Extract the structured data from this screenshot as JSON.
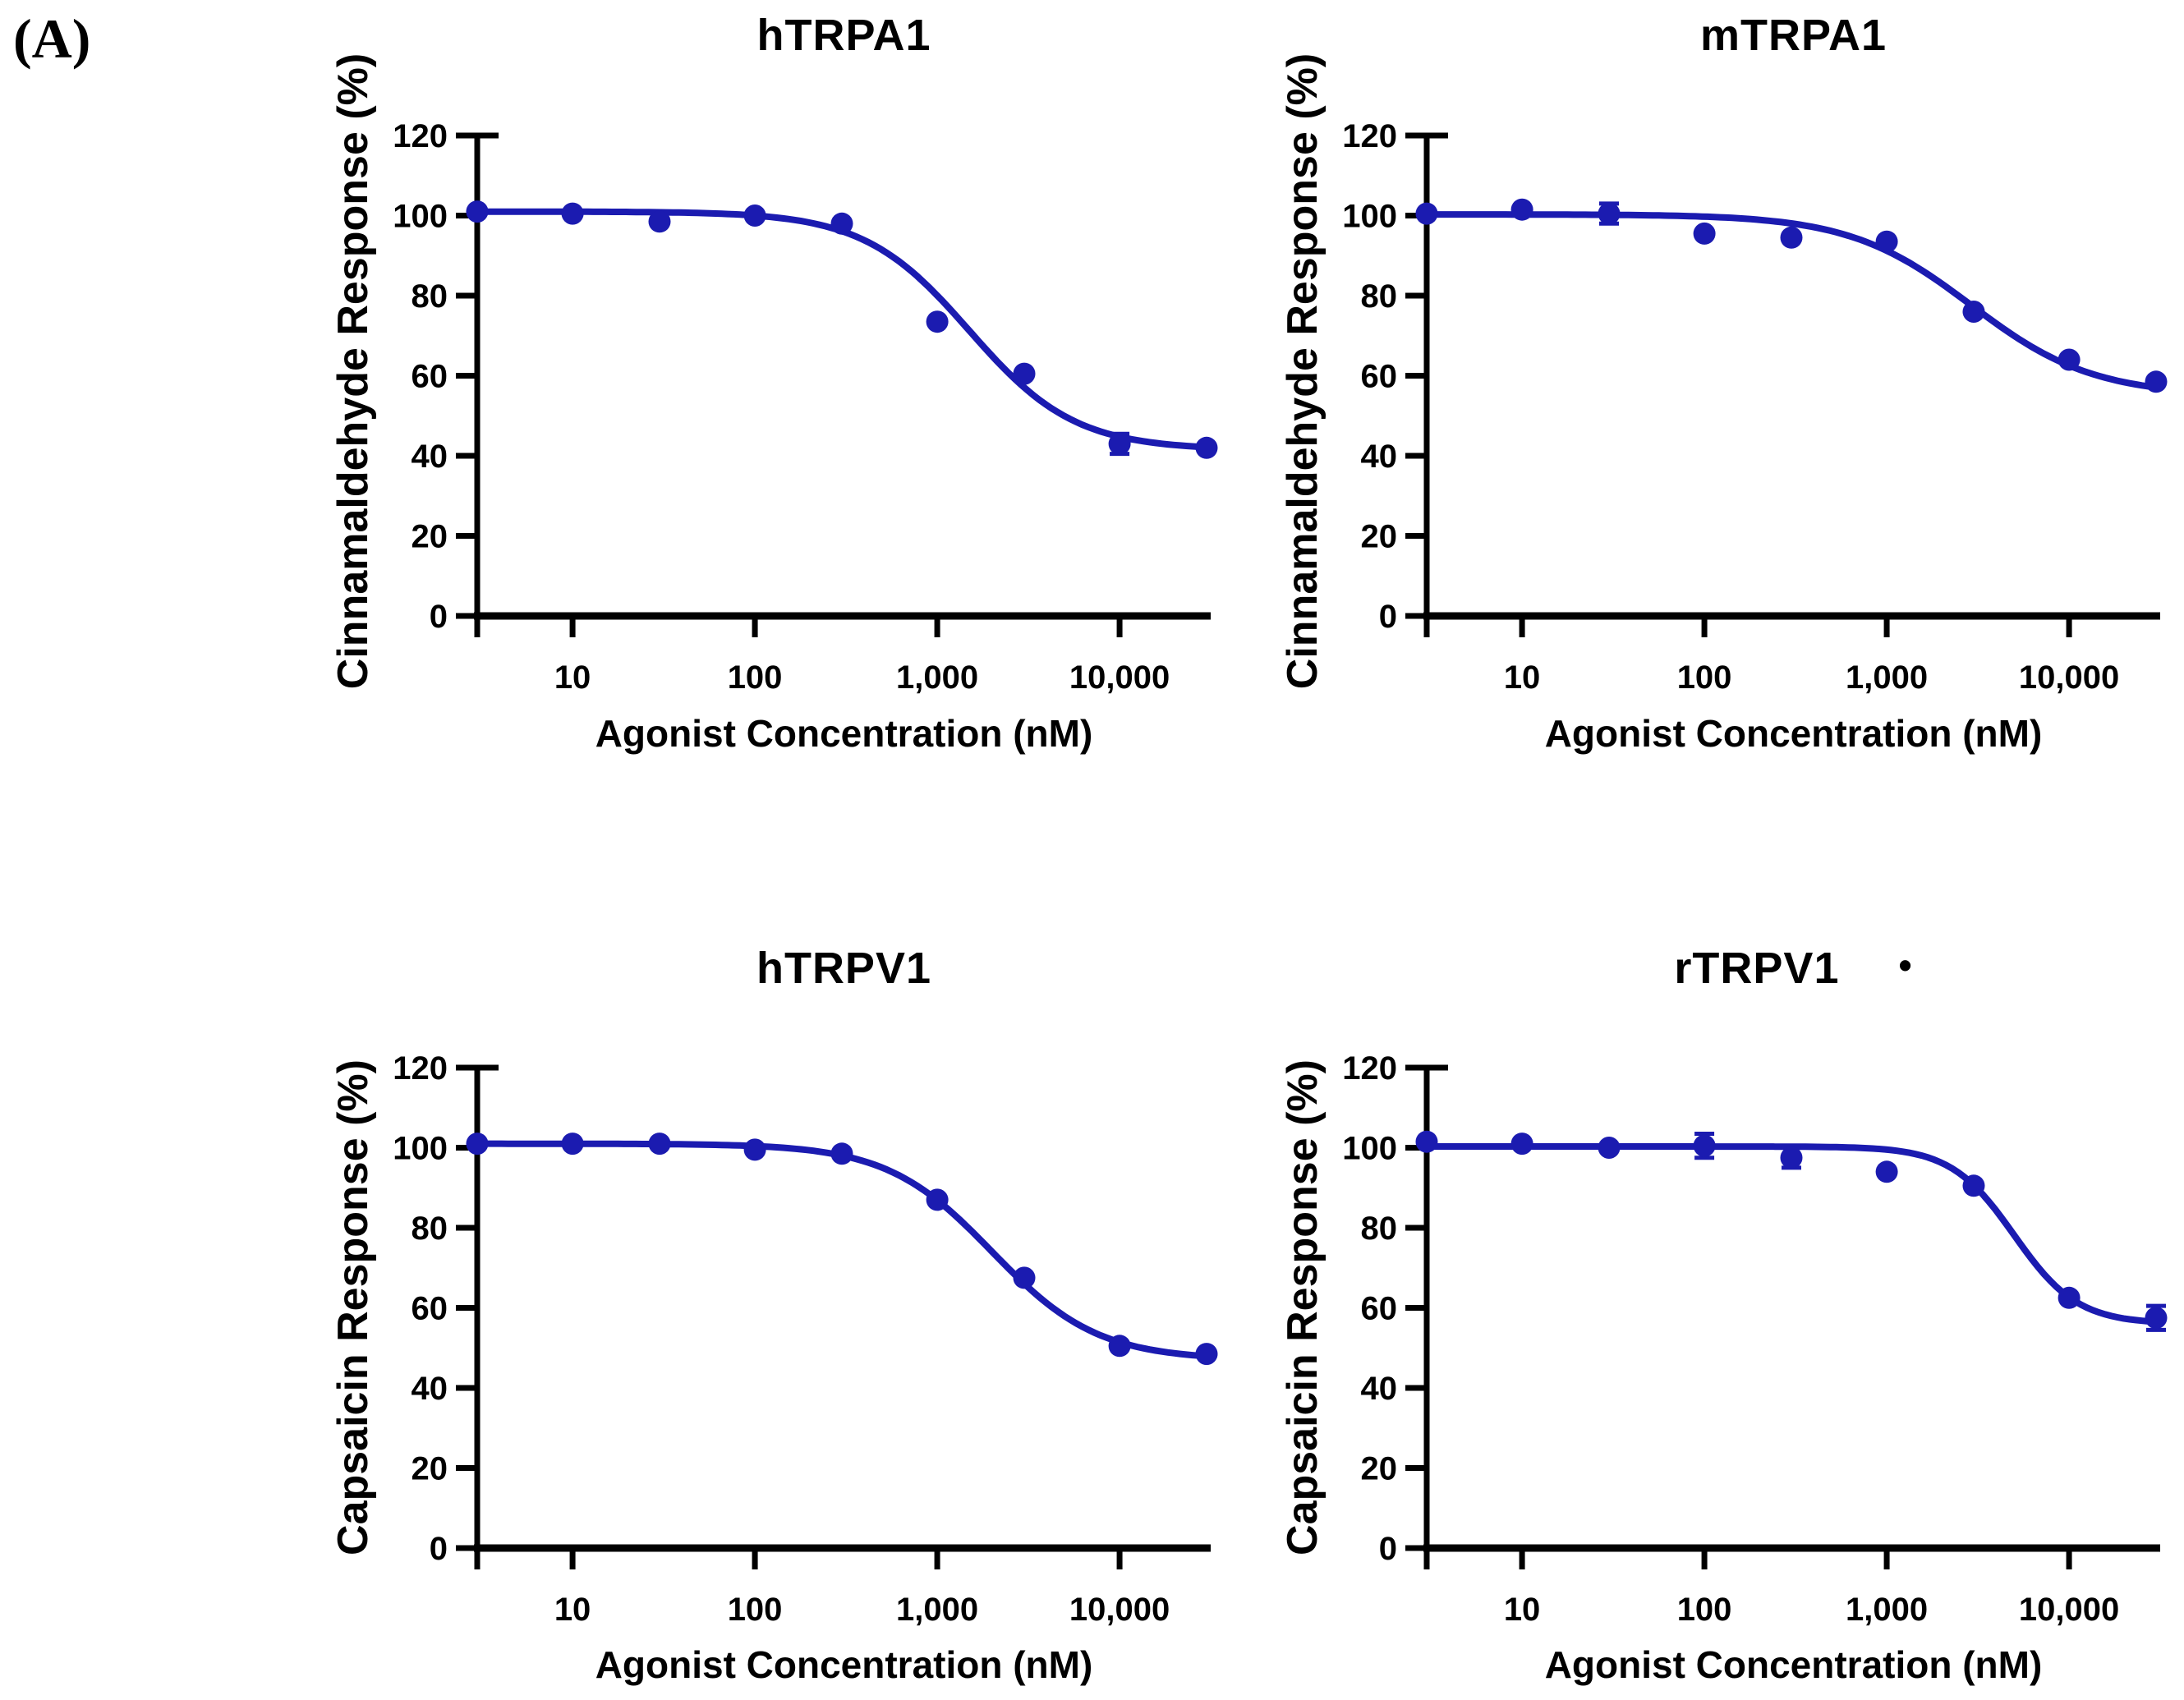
{
  "figure_label": "(A)",
  "colors": {
    "curve": "#1B1BB0",
    "axis": "#000000",
    "text": "#000000",
    "background": "#FFFFFF"
  },
  "chart_data": [
    {
      "type": "scatter-line",
      "title": "hTRPA1",
      "title_marker": "",
      "xlabel": "Agonist Concentration (nM)",
      "ylabel": "Cinnamaldehyde Response (%)",
      "x_scale": "log",
      "xlim": [
        3,
        31600
      ],
      "ylim": [
        0,
        120
      ],
      "x": [
        3,
        10,
        30,
        100,
        300,
        1000,
        3000,
        10000,
        30000
      ],
      "y": [
        101,
        100.5,
        98.5,
        100,
        98,
        73.5,
        60.5,
        43,
        42
      ],
      "y_err": [
        0,
        0,
        0,
        0,
        0,
        0,
        0,
        2.5,
        0
      ],
      "fit": {
        "top": 101,
        "bottom": 41.5,
        "ic50_nM": 1500,
        "hill": 1.5
      },
      "xticks": [
        10,
        100,
        1000,
        10000
      ],
      "xtick_labels": [
        "10",
        "100",
        "1,000",
        "10,000"
      ],
      "yticks": [
        0,
        20,
        40,
        60,
        80,
        100,
        120
      ],
      "ytick_labels": [
        "0",
        "20",
        "40",
        "60",
        "80",
        "100",
        "120"
      ]
    },
    {
      "type": "scatter-line",
      "title": "mTRPA1",
      "title_marker": "",
      "xlabel": "Agonist Concentration (nM)",
      "ylabel": "Cinnamaldehyde Response (%)",
      "x_scale": "log",
      "xlim": [
        3,
        31600
      ],
      "ylim": [
        0,
        120
      ],
      "x": [
        3,
        10,
        30,
        100,
        300,
        1000,
        3000,
        10000,
        30000
      ],
      "y": [
        100.5,
        101.5,
        100.5,
        95.5,
        94.5,
        93.5,
        76,
        64,
        58.5
      ],
      "y_err": [
        0,
        0,
        2.5,
        0,
        0,
        0,
        0,
        0,
        0
      ],
      "fit": {
        "top": 100.3,
        "bottom": 55,
        "ic50_nM": 2900,
        "hill": 1.3
      },
      "xticks": [
        10,
        100,
        1000,
        10000
      ],
      "xtick_labels": [
        "10",
        "100",
        "1,000",
        "10,000"
      ],
      "yticks": [
        0,
        20,
        40,
        60,
        80,
        100,
        120
      ],
      "ytick_labels": [
        "0",
        "20",
        "40",
        "60",
        "80",
        "100",
        "120"
      ]
    },
    {
      "type": "scatter-line",
      "title": "hTRPV1",
      "title_marker": "",
      "xlabel": "Agonist Concentration (nM)",
      "ylabel": "Capsaicin Response (%)",
      "x_scale": "log",
      "xlim": [
        3,
        31600
      ],
      "ylim": [
        0,
        120
      ],
      "x": [
        3,
        10,
        30,
        100,
        300,
        1000,
        3000,
        10000,
        30000
      ],
      "y": [
        101,
        101,
        101,
        99.5,
        98.5,
        87,
        67.5,
        50.5,
        48.5
      ],
      "y_err": [
        0,
        0,
        0,
        0,
        0,
        0,
        0,
        0,
        0
      ],
      "fit": {
        "top": 101,
        "bottom": 47,
        "ic50_nM": 2000,
        "hill": 1.5
      },
      "xticks": [
        10,
        100,
        1000,
        10000
      ],
      "xtick_labels": [
        "10",
        "100",
        "1,000",
        "10,000"
      ],
      "yticks": [
        0,
        20,
        40,
        60,
        80,
        100,
        120
      ],
      "ytick_labels": [
        "0",
        "20",
        "40",
        "60",
        "80",
        "100",
        "120"
      ]
    },
    {
      "type": "scatter-line",
      "title": "rTRPV1",
      "title_marker": "•",
      "xlabel": "Agonist Concentration (nM)",
      "ylabel": "Capsaicin Response (%)",
      "x_scale": "log",
      "xlim": [
        3,
        31600
      ],
      "ylim": [
        0,
        120
      ],
      "x": [
        3,
        10,
        30,
        100,
        300,
        1000,
        3000,
        10000,
        30000
      ],
      "y": [
        101.5,
        101,
        100,
        100.5,
        97.5,
        94,
        90.5,
        62.5,
        57.5
      ],
      "y_err": [
        0,
        0,
        0,
        3,
        2.5,
        0,
        0,
        0,
        3
      ],
      "fit": {
        "top": 100.3,
        "bottom": 56,
        "ic50_nM": 5000,
        "hill": 2.5
      },
      "xticks": [
        10,
        100,
        1000,
        10000
      ],
      "xtick_labels": [
        "10",
        "100",
        "1,000",
        "10,000"
      ],
      "yticks": [
        0,
        20,
        40,
        60,
        80,
        100,
        120
      ],
      "ytick_labels": [
        "0",
        "20",
        "40",
        "60",
        "80",
        "100",
        "120"
      ]
    }
  ]
}
